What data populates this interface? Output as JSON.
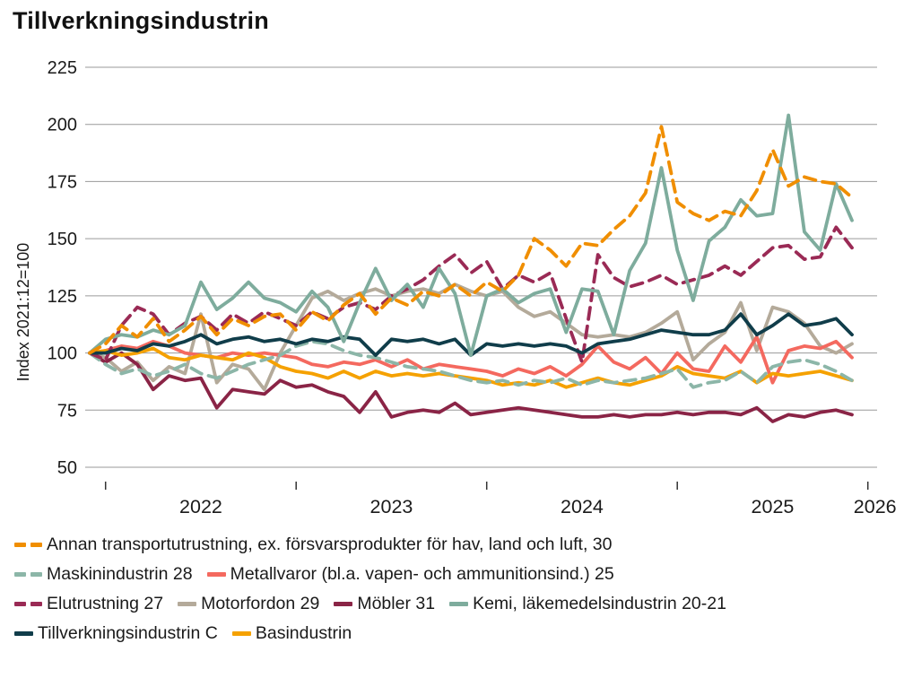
{
  "title": "Tillverkningsindustrin",
  "y_axis_title": "Index 2021:12=100",
  "chart_data": {
    "type": "line",
    "title": "Tillverkningsindustrin",
    "ylabel": "Index 2021:12=100",
    "xlabel": "",
    "grid": "horizontal",
    "ylim": [
      50,
      225
    ],
    "y_ticks": [
      50,
      75,
      100,
      125,
      150,
      175,
      200,
      225
    ],
    "x_unit": "month",
    "x_start": "2021-12",
    "x_end": "2025-12",
    "year_ticks": [
      "2022",
      "2023",
      "2024",
      "2025",
      "2026"
    ],
    "series": [
      {
        "key": "annan-transportutrustning-30",
        "name": "Annan transportutrustning, ex. försvarsprodukter för hav, land och luft, 30",
        "color": "#F08E00",
        "dashed": true,
        "values": [
          100,
          104,
          112,
          107,
          115,
          105,
          110,
          116,
          108,
          115,
          112,
          116,
          117,
          110,
          118,
          114,
          121,
          126,
          117,
          124,
          121,
          127,
          125,
          130,
          125,
          131,
          127,
          134,
          150,
          145,
          138,
          148,
          147,
          154,
          160,
          170,
          199,
          166,
          161,
          158,
          162,
          160,
          171,
          189,
          173,
          177,
          175,
          174,
          168
        ]
      },
      {
        "key": "maskinindustrin-28",
        "name": "Maskinindustrin 28",
        "color": "#8CB6A8",
        "dashed": true,
        "values": [
          100,
          95,
          91,
          93,
          90,
          92,
          95,
          91,
          89,
          92,
          95,
          97,
          99,
          103,
          105,
          104,
          101,
          99,
          98,
          96,
          94,
          93,
          92,
          90,
          88,
          87,
          88,
          86,
          88,
          87,
          89,
          86,
          88,
          87,
          88,
          89,
          91,
          93,
          85,
          87,
          88,
          92,
          87,
          94,
          96,
          97,
          95,
          92,
          88
        ]
      },
      {
        "key": "metallvaror-25",
        "name": "Metallvaror (bl.a. vapen- och ammunitionsind.) 25",
        "color": "#F4695F",
        "dashed": false,
        "values": [
          100,
          101,
          103,
          102,
          105,
          103,
          100,
          99,
          98,
          100,
          99,
          100,
          99,
          98,
          95,
          94,
          96,
          95,
          97,
          94,
          97,
          93,
          95,
          94,
          93,
          92,
          90,
          93,
          91,
          94,
          90,
          95,
          103,
          96,
          93,
          98,
          91,
          100,
          93,
          92,
          103,
          96,
          107,
          87,
          101,
          103,
          102,
          105,
          98
        ]
      },
      {
        "key": "elutrustning-27",
        "name": "Elutrustning 27",
        "color": "#9A2A55",
        "dashed": true,
        "values": [
          100,
          97,
          112,
          120,
          117,
          108,
          113,
          116,
          110,
          117,
          113,
          118,
          115,
          112,
          118,
          115,
          120,
          122,
          119,
          125,
          128,
          132,
          138,
          143,
          135,
          140,
          128,
          134,
          131,
          135,
          115,
          96,
          143,
          133,
          129,
          131,
          134,
          130,
          132,
          134,
          138,
          134,
          140,
          146,
          147,
          141,
          142,
          155,
          146
        ]
      },
      {
        "key": "motorfordon-29",
        "name": "Motorfordon 29",
        "color": "#B4AA9A",
        "dashed": false,
        "values": [
          100,
          98,
          92,
          96,
          88,
          94,
          91,
          117,
          87,
          95,
          93,
          84,
          100,
          112,
          124,
          127,
          123,
          126,
          128,
          125,
          127,
          128,
          126,
          130,
          127,
          125,
          127,
          120,
          116,
          118,
          113,
          108,
          107,
          108,
          107,
          109,
          113,
          118,
          97,
          104,
          109,
          122,
          101,
          120,
          118,
          113,
          103,
          100,
          104
        ]
      },
      {
        "key": "mobler-31",
        "name": "Möbler 31",
        "color": "#8A2446",
        "dashed": false,
        "values": [
          100,
          96,
          100,
          95,
          84,
          90,
          88,
          89,
          76,
          84,
          83,
          82,
          88,
          85,
          86,
          83,
          81,
          74,
          83,
          72,
          74,
          75,
          74,
          78,
          73,
          74,
          75,
          76,
          75,
          74,
          73,
          72,
          72,
          73,
          72,
          73,
          73,
          74,
          73,
          74,
          74,
          73,
          76,
          70,
          73,
          72,
          74,
          75,
          73
        ]
      },
      {
        "key": "kemi-lakemedelsindustrin-20-21",
        "name": "Kemi, läkemedelsindustrin 20-21",
        "color": "#7EAC9D",
        "dashed": false,
        "values": [
          100,
          106,
          108,
          107,
          110,
          108,
          112,
          131,
          119,
          124,
          131,
          124,
          122,
          118,
          127,
          120,
          105,
          122,
          137,
          123,
          130,
          120,
          137,
          126,
          99,
          125,
          128,
          122,
          126,
          128,
          109,
          128,
          127,
          108,
          136,
          148,
          181,
          145,
          123,
          149,
          155,
          167,
          160,
          161,
          204,
          153,
          145,
          174,
          158
        ]
      },
      {
        "key": "tillverkningsindustrin-c",
        "name": "Tillverkningsindustrin C",
        "color": "#103D4A",
        "dashed": false,
        "values": [
          100,
          100,
          102,
          101,
          104,
          103,
          105,
          108,
          104,
          106,
          107,
          105,
          106,
          104,
          106,
          105,
          107,
          106,
          99,
          106,
          105,
          106,
          104,
          106,
          99,
          104,
          103,
          104,
          103,
          104,
          103,
          100,
          104,
          105,
          106,
          108,
          110,
          109,
          108,
          108,
          110,
          117,
          108,
          112,
          117,
          112,
          113,
          115,
          108
        ]
      },
      {
        "key": "basindustrin",
        "name": "Basindustrin",
        "color": "#F5A100",
        "dashed": false,
        "values": [
          100,
          101,
          99,
          100,
          102,
          98,
          97,
          99,
          98,
          97,
          100,
          98,
          94,
          92,
          91,
          89,
          92,
          89,
          92,
          90,
          91,
          90,
          91,
          90,
          89,
          88,
          86,
          87,
          86,
          88,
          85,
          87,
          89,
          87,
          86,
          88,
          90,
          94,
          91,
          90,
          89,
          92,
          87,
          91,
          90,
          91,
          92,
          90,
          88
        ]
      }
    ]
  },
  "legend": {
    "rows": [
      [
        0
      ],
      [
        1,
        2
      ],
      [
        3,
        4,
        5,
        6
      ],
      [
        7,
        8
      ]
    ]
  },
  "style": {
    "gridline_color": "#9a9a9a",
    "tick_color": "#333333",
    "text_color": "#1a1a1a"
  }
}
